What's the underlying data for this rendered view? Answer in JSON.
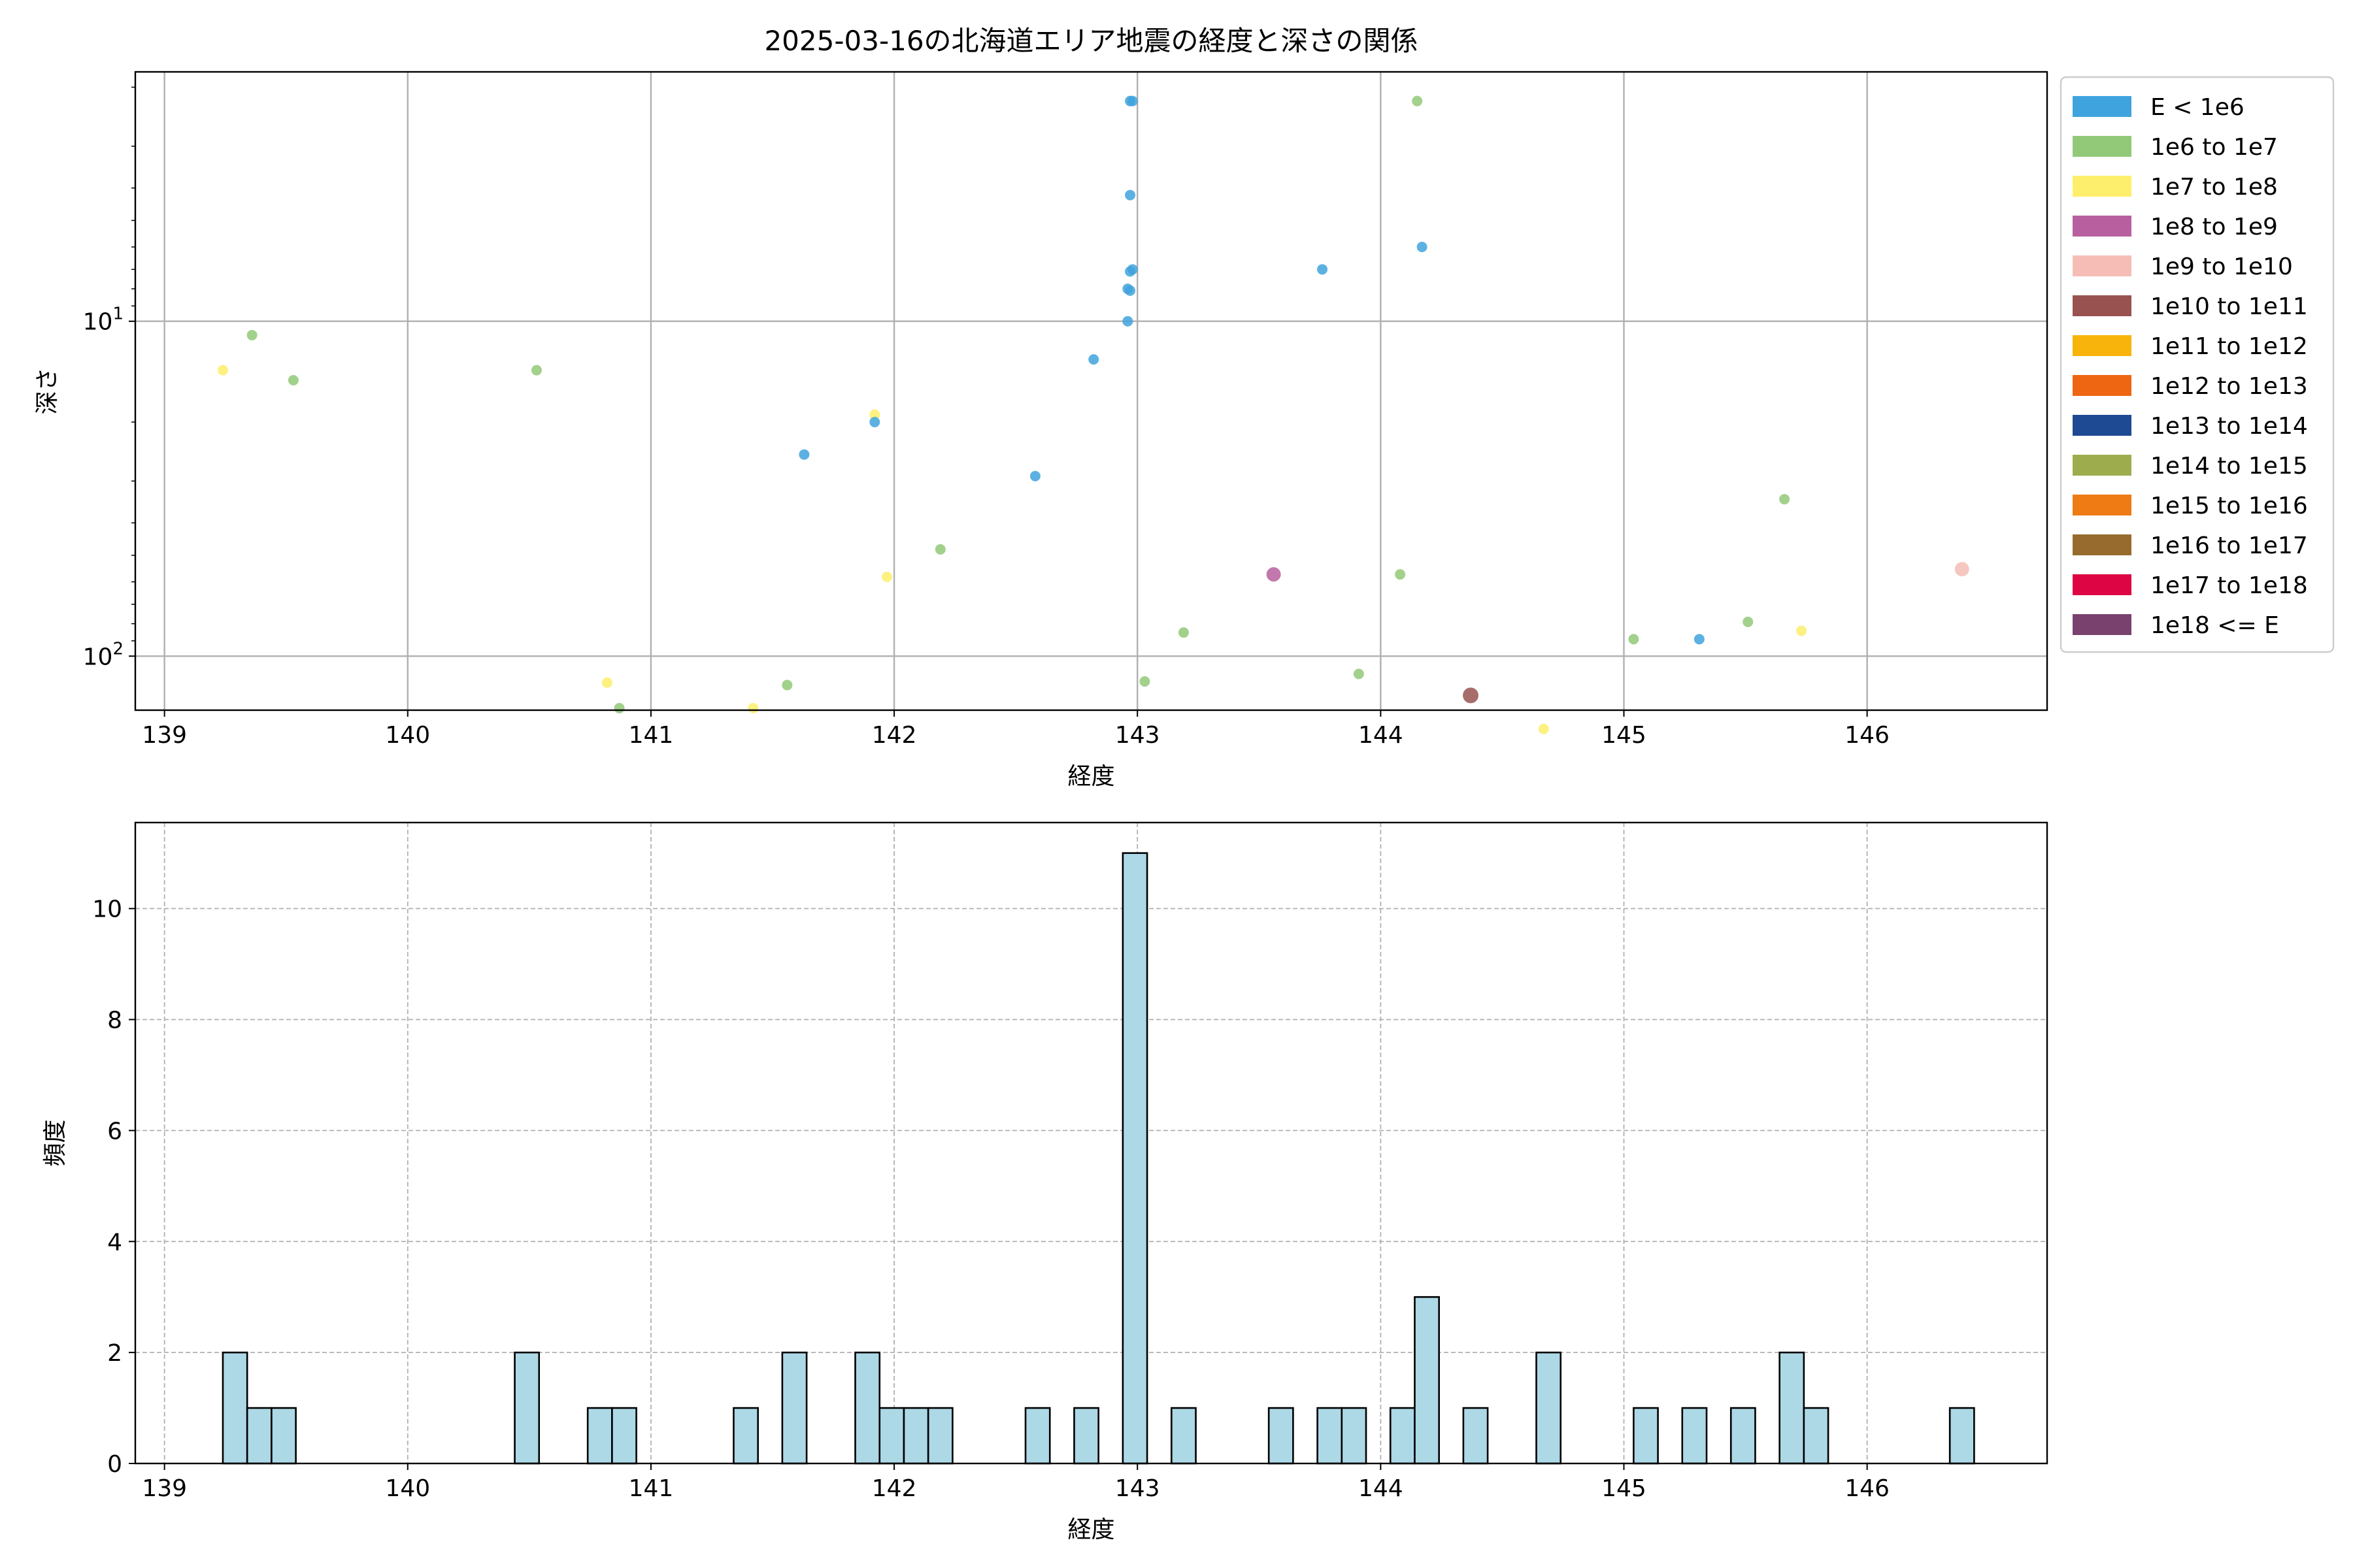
{
  "chart_data": [
    {
      "type": "scatter",
      "title": "2025-03-16の北海道エリア地震の経度と深さの関係",
      "xlabel": "経度",
      "ylabel": "深さ",
      "xlim": [
        138.88,
        146.74
      ],
      "ylim": [
        145,
        1.8
      ],
      "y_scale": "log",
      "y_inverted": true,
      "grid": true,
      "legend_position": "outside-right",
      "x_ticks": [
        {
          "v": 139,
          "label": "139"
        },
        {
          "v": 140,
          "label": "140"
        },
        {
          "v": 141,
          "label": "141"
        },
        {
          "v": 142,
          "label": "142"
        },
        {
          "v": 143,
          "label": "143"
        },
        {
          "v": 144,
          "label": "144"
        },
        {
          "v": 145,
          "label": "145"
        },
        {
          "v": 146,
          "label": "146"
        }
      ],
      "y_ticks": [
        {
          "v": 10,
          "label": "10",
          "sup": "1"
        },
        {
          "v": 100,
          "label": "10",
          "sup": "2"
        }
      ],
      "legend": [
        {
          "label": "E < 1e6",
          "color": "#3fa3dd"
        },
        {
          "label": "1e6 to 1e7",
          "color": "#92c978"
        },
        {
          "label": "1e7 to 1e8",
          "color": "#fdef6b"
        },
        {
          "label": "1e8 to 1e9",
          "color": "#b8609f"
        },
        {
          "label": "1e9 to 1e10",
          "color": "#f5bdb5"
        },
        {
          "label": "1e10 to 1e11",
          "color": "#985351"
        },
        {
          "label": "1e11 to 1e12",
          "color": "#f8b40a"
        },
        {
          "label": "1e12 to 1e13",
          "color": "#ee6612"
        },
        {
          "label": "1e13 to 1e14",
          "color": "#1d4a92"
        },
        {
          "label": "1e14 to 1e15",
          "color": "#9dad4e"
        },
        {
          "label": "1e15 to 1e16",
          "color": "#ee7b13"
        },
        {
          "label": "1e16 to 1e17",
          "color": "#966b2d"
        },
        {
          "label": "1e17 to 1e18",
          "color": "#dd0543"
        },
        {
          "label": "1e18 <= E",
          "color": "#79416e"
        }
      ],
      "points": [
        {
          "x": 139.24,
          "y": 14,
          "cls": 2
        },
        {
          "x": 139.36,
          "y": 11,
          "cls": 1
        },
        {
          "x": 139.53,
          "y": 15,
          "cls": 1
        },
        {
          "x": 140.53,
          "y": 14,
          "cls": 1
        },
        {
          "x": 140.82,
          "y": 120,
          "cls": 2
        },
        {
          "x": 140.87,
          "y": 143,
          "cls": 1
        },
        {
          "x": 141.42,
          "y": 143,
          "cls": 2
        },
        {
          "x": 141.56,
          "y": 122,
          "cls": 1
        },
        {
          "x": 141.63,
          "y": 25,
          "cls": 0
        },
        {
          "x": 141.92,
          "y": 19,
          "cls": 2
        },
        {
          "x": 141.92,
          "y": 20,
          "cls": 0
        },
        {
          "x": 141.97,
          "y": 58,
          "cls": 2
        },
        {
          "x": 142.19,
          "y": 48,
          "cls": 1
        },
        {
          "x": 142.58,
          "y": 29,
          "cls": 0
        },
        {
          "x": 142.82,
          "y": 13,
          "cls": 0
        },
        {
          "x": 142.97,
          "y": 2.2,
          "cls": 0
        },
        {
          "x": 142.98,
          "y": 2.2,
          "cls": 0
        },
        {
          "x": 142.97,
          "y": 4.2,
          "cls": 0
        },
        {
          "x": 142.98,
          "y": 7.0,
          "cls": 0
        },
        {
          "x": 142.97,
          "y": 7.1,
          "cls": 0
        },
        {
          "x": 142.96,
          "y": 8.0,
          "cls": 0
        },
        {
          "x": 142.97,
          "y": 8.1,
          "cls": 0
        },
        {
          "x": 142.96,
          "y": 10,
          "cls": 0
        },
        {
          "x": 143.03,
          "y": 119,
          "cls": 1
        },
        {
          "x": 143.19,
          "y": 85,
          "cls": 1
        },
        {
          "x": 143.56,
          "y": 57,
          "cls": 3,
          "r": 11
        },
        {
          "x": 143.76,
          "y": 7.0,
          "cls": 0
        },
        {
          "x": 143.91,
          "y": 113,
          "cls": 1
        },
        {
          "x": 144.08,
          "y": 57,
          "cls": 1
        },
        {
          "x": 144.15,
          "y": 2.2,
          "cls": 1
        },
        {
          "x": 144.17,
          "y": 6.0,
          "cls": 0
        },
        {
          "x": 144.37,
          "y": 131,
          "cls": 5,
          "r": 12
        },
        {
          "x": 144.67,
          "y": 165,
          "cls": 2
        },
        {
          "x": 145.04,
          "y": 89,
          "cls": 1
        },
        {
          "x": 145.31,
          "y": 89,
          "cls": 0
        },
        {
          "x": 145.51,
          "y": 79,
          "cls": 1
        },
        {
          "x": 145.66,
          "y": 34,
          "cls": 1
        },
        {
          "x": 145.73,
          "y": 84,
          "cls": 2
        },
        {
          "x": 146.39,
          "y": 55,
          "cls": 4,
          "r": 11
        }
      ]
    },
    {
      "type": "bar",
      "subtype": "histogram",
      "xlabel": "経度",
      "ylabel": "頻度",
      "xlim": [
        138.88,
        146.74
      ],
      "ylim": [
        0,
        11.55
      ],
      "bin_width": 0.1,
      "bar_color": "#add8e6",
      "grid": true,
      "x_ticks": [
        {
          "v": 139,
          "label": "139"
        },
        {
          "v": 140,
          "label": "140"
        },
        {
          "v": 141,
          "label": "141"
        },
        {
          "v": 142,
          "label": "142"
        },
        {
          "v": 143,
          "label": "143"
        },
        {
          "v": 144,
          "label": "144"
        },
        {
          "v": 145,
          "label": "145"
        },
        {
          "v": 146,
          "label": "146"
        }
      ],
      "y_ticks": [
        {
          "v": 0,
          "label": "0"
        },
        {
          "v": 2,
          "label": "2"
        },
        {
          "v": 4,
          "label": "4"
        },
        {
          "v": 6,
          "label": "6"
        },
        {
          "v": 8,
          "label": "8"
        },
        {
          "v": 10,
          "label": "10"
        }
      ],
      "bins": [
        {
          "x0": 139.24,
          "count": 2
        },
        {
          "x0": 139.34,
          "count": 1
        },
        {
          "x0": 139.44,
          "count": 1
        },
        {
          "x0": 140.44,
          "count": 2
        },
        {
          "x0": 140.74,
          "count": 1
        },
        {
          "x0": 140.84,
          "count": 1
        },
        {
          "x0": 141.34,
          "count": 1
        },
        {
          "x0": 141.54,
          "count": 2
        },
        {
          "x0": 141.84,
          "count": 2
        },
        {
          "x0": 141.94,
          "count": 1
        },
        {
          "x0": 142.04,
          "count": 1
        },
        {
          "x0": 142.14,
          "count": 1
        },
        {
          "x0": 142.54,
          "count": 1
        },
        {
          "x0": 142.74,
          "count": 1
        },
        {
          "x0": 142.94,
          "count": 11
        },
        {
          "x0": 143.14,
          "count": 1
        },
        {
          "x0": 143.54,
          "count": 1
        },
        {
          "x0": 143.74,
          "count": 1
        },
        {
          "x0": 143.84,
          "count": 1
        },
        {
          "x0": 144.04,
          "count": 1
        },
        {
          "x0": 144.14,
          "count": 3
        },
        {
          "x0": 144.34,
          "count": 1
        },
        {
          "x0": 144.64,
          "count": 2
        },
        {
          "x0": 145.04,
          "count": 1
        },
        {
          "x0": 145.24,
          "count": 1
        },
        {
          "x0": 145.44,
          "count": 1
        },
        {
          "x0": 145.64,
          "count": 2
        },
        {
          "x0": 145.74,
          "count": 1
        },
        {
          "x0": 146.34,
          "count": 1
        }
      ]
    }
  ]
}
